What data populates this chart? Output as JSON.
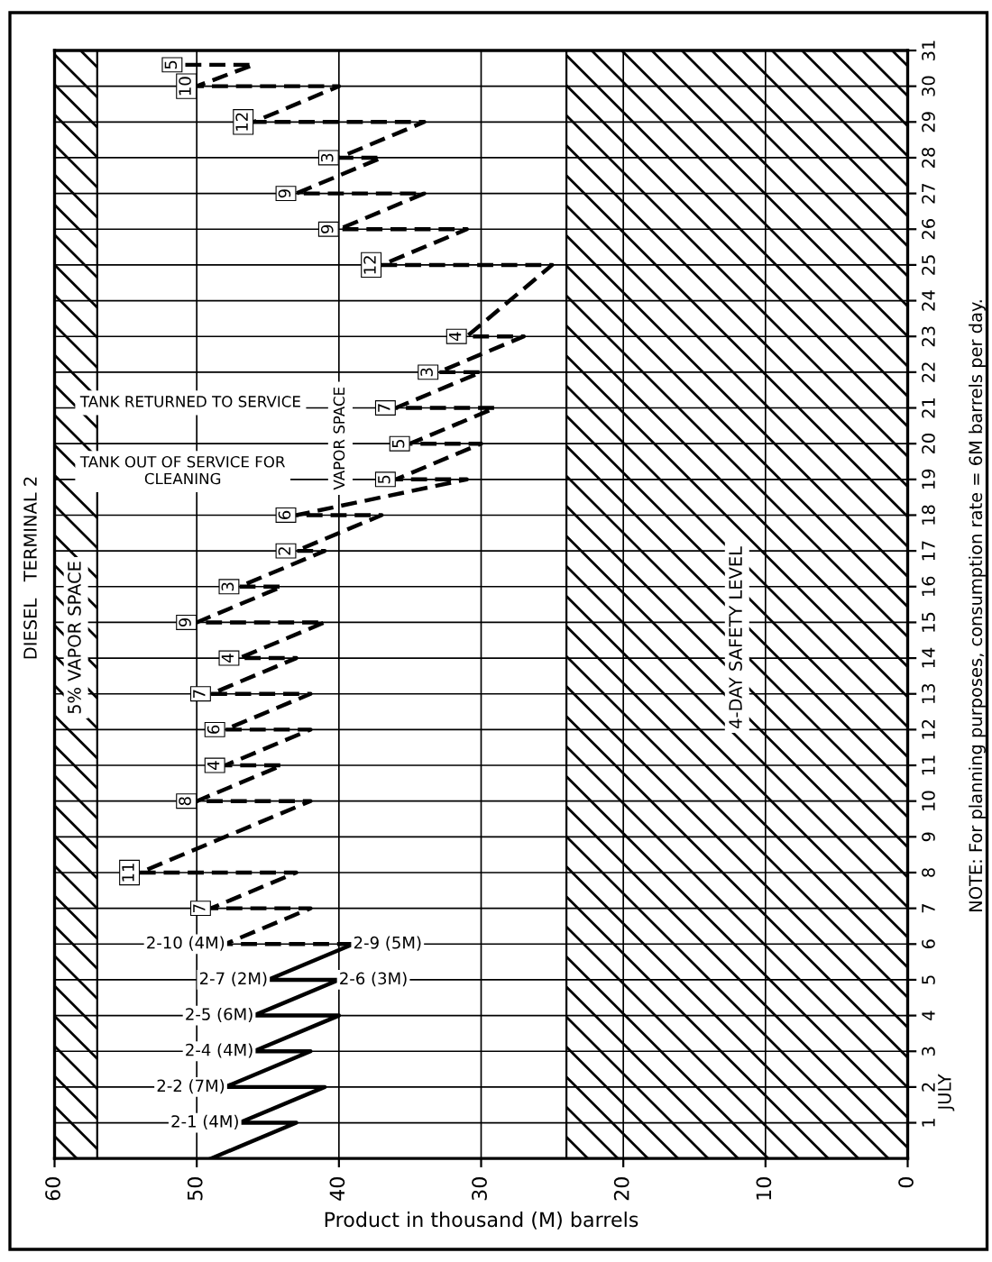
{
  "chart_data": {
    "type": "line",
    "orientation": "horizontal",
    "title": "DIESEL   TERMINAL 2",
    "xlabel": "Product in thousand (M) barrels",
    "ylabel": "JULY",
    "series": [
      {
        "color": "#000000",
        "line_style": "solid",
        "x": [
          0,
          1,
          1,
          2,
          2,
          3,
          3,
          4,
          4,
          5,
          5,
          6
        ],
        "values": [
          49,
          43,
          47,
          41,
          48,
          42,
          46,
          40,
          46,
          40,
          45,
          39
        ]
      },
      {
        "color": "#000000",
        "line_style": "dashed",
        "x": [
          6,
          6,
          7,
          7,
          8,
          8,
          10,
          10,
          11,
          11,
          12,
          12,
          13,
          13,
          14,
          14,
          15,
          15,
          16,
          16,
          17,
          17,
          18,
          18,
          19,
          19,
          20,
          20,
          21,
          21,
          22,
          22,
          23,
          23,
          25,
          25,
          26,
          26,
          27,
          27,
          28,
          28,
          29,
          29,
          30,
          30,
          30.6,
          30.6
        ],
        "values": [
          39,
          48,
          42,
          49,
          43,
          54,
          42,
          50,
          44,
          48,
          42,
          48,
          42,
          49,
          43,
          47,
          41,
          50,
          44,
          47,
          41,
          43,
          37,
          43,
          31,
          36,
          30,
          35,
          29,
          36,
          30,
          33,
          27,
          31,
          25,
          37,
          31,
          40,
          34,
          43,
          37,
          40,
          34,
          46,
          40,
          50,
          46,
          51
        ]
      }
    ],
    "xlim": [
      60,
      0
    ],
    "xticks": [
      0,
      10,
      20,
      30,
      40,
      50,
      60
    ],
    "ylim": [
      0,
      31
    ],
    "yticks": [
      1,
      2,
      3,
      4,
      5,
      6,
      7,
      8,
      9,
      10,
      11,
      12,
      13,
      14,
      15,
      16,
      17,
      18,
      19,
      20,
      21,
      22,
      23,
      24,
      25,
      26,
      27,
      28,
      29,
      30,
      31
    ],
    "grid": true,
    "bands": [
      {
        "axis": "x",
        "from": 57,
        "to": 60,
        "label": "5% VAPOR SPACE",
        "color": "#000000"
      },
      {
        "axis": "x",
        "from": 0,
        "to": 24,
        "label": "4-DAY SAFETY LEVEL",
        "color": "#000000"
      }
    ],
    "annotations": [
      {
        "text": "2-1 (4M)",
        "x": 47,
        "y": 1
      },
      {
        "text": "2-2 (7M)",
        "x": 48,
        "y": 2
      },
      {
        "text": "2-4 (4M)",
        "x": 46,
        "y": 3
      },
      {
        "text": "2-5 (6M)",
        "x": 46,
        "y": 4
      },
      {
        "text": "2-7 (2M)",
        "x": 45,
        "y": 5
      },
      {
        "text": "2-10 (4M)",
        "x": 48,
        "y": 6
      },
      {
        "text": "2-6 (3M)",
        "x": 40,
        "y": 5
      },
      {
        "text": "2-9 (5M)",
        "x": 39,
        "y": 6
      },
      {
        "text": "7",
        "x": 49,
        "y": 7
      },
      {
        "text": "11",
        "x": 54,
        "y": 8
      },
      {
        "text": "8",
        "x": 50,
        "y": 10
      },
      {
        "text": "4",
        "x": 48,
        "y": 11
      },
      {
        "text": "6",
        "x": 48,
        "y": 12
      },
      {
        "text": "7",
        "x": 49,
        "y": 13
      },
      {
        "text": "4",
        "x": 47,
        "y": 14
      },
      {
        "text": "9",
        "x": 50,
        "y": 15
      },
      {
        "text": "3",
        "x": 47,
        "y": 16
      },
      {
        "text": "2",
        "x": 43,
        "y": 17
      },
      {
        "text": "6",
        "x": 43,
        "y": 18
      },
      {
        "text": "5",
        "x": 36,
        "y": 19
      },
      {
        "text": "5",
        "x": 35,
        "y": 20
      },
      {
        "text": "7",
        "x": 36,
        "y": 21
      },
      {
        "text": "3",
        "x": 33,
        "y": 22
      },
      {
        "text": "4",
        "x": 31,
        "y": 23
      },
      {
        "text": "12",
        "x": 37,
        "y": 25
      },
      {
        "text": "9",
        "x": 40,
        "y": 26
      },
      {
        "text": "9",
        "x": 43,
        "y": 27
      },
      {
        "text": "3",
        "x": 40,
        "y": 28
      },
      {
        "text": "12",
        "x": 46,
        "y": 29
      },
      {
        "text": "10",
        "x": 50,
        "y": 30
      },
      {
        "text": "5",
        "x": 51,
        "y": 30.6
      },
      "TANK RETURNED TO SERVICE",
      "TANK OUT OF SERVICE FOR\nCLEANING",
      "VAPOR SPACE",
      "NOTE: For planning purposes, consumption rate = 6M barrels per day."
    ]
  }
}
